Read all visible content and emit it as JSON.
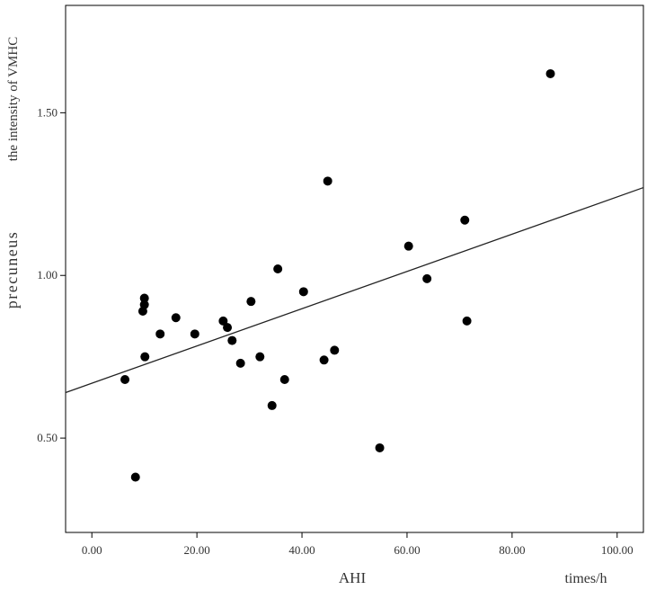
{
  "chart_data": {
    "type": "scatter",
    "title": "",
    "xlabel": "AHI",
    "xlabel_unit": "times/h",
    "ylabel_line1": "the intensity of VMHC",
    "ylabel_line2": "precuneus",
    "xlim": [
      -5,
      105
    ],
    "ylim": [
      0.21,
      1.83
    ],
    "xticks": [
      0,
      20,
      40,
      60,
      80,
      100
    ],
    "xtick_labels": [
      "0.00",
      "20.00",
      "40.00",
      "60.00",
      "80.00",
      "100.00"
    ],
    "yticks": [
      0.5,
      1.0,
      1.5
    ],
    "ytick_labels": [
      "0.50",
      "1.00",
      "1.50"
    ],
    "grid": false,
    "point_color": "#000000",
    "line_color": "#222222",
    "points": [
      {
        "x": 6.3,
        "y": 0.68
      },
      {
        "x": 8.3,
        "y": 0.38
      },
      {
        "x": 9.7,
        "y": 0.89
      },
      {
        "x": 10.0,
        "y": 0.91
      },
      {
        "x": 10.0,
        "y": 0.93
      },
      {
        "x": 10.1,
        "y": 0.75
      },
      {
        "x": 13.0,
        "y": 0.82
      },
      {
        "x": 16.0,
        "y": 0.87
      },
      {
        "x": 19.6,
        "y": 0.82
      },
      {
        "x": 25.0,
        "y": 0.86
      },
      {
        "x": 25.8,
        "y": 0.84
      },
      {
        "x": 26.7,
        "y": 0.8
      },
      {
        "x": 28.3,
        "y": 0.73
      },
      {
        "x": 30.3,
        "y": 0.92
      },
      {
        "x": 32.0,
        "y": 0.75
      },
      {
        "x": 34.3,
        "y": 0.6
      },
      {
        "x": 35.4,
        "y": 1.02
      },
      {
        "x": 36.7,
        "y": 0.68
      },
      {
        "x": 40.3,
        "y": 0.95
      },
      {
        "x": 44.2,
        "y": 0.74
      },
      {
        "x": 44.9,
        "y": 1.29
      },
      {
        "x": 46.2,
        "y": 0.77
      },
      {
        "x": 54.8,
        "y": 0.47
      },
      {
        "x": 60.3,
        "y": 1.09
      },
      {
        "x": 63.8,
        "y": 0.99
      },
      {
        "x": 71.0,
        "y": 1.17
      },
      {
        "x": 71.4,
        "y": 0.86
      },
      {
        "x": 87.3,
        "y": 1.62
      }
    ],
    "fit_line": {
      "x": [
        -5,
        105
      ],
      "y": [
        0.64,
        1.27
      ]
    }
  }
}
